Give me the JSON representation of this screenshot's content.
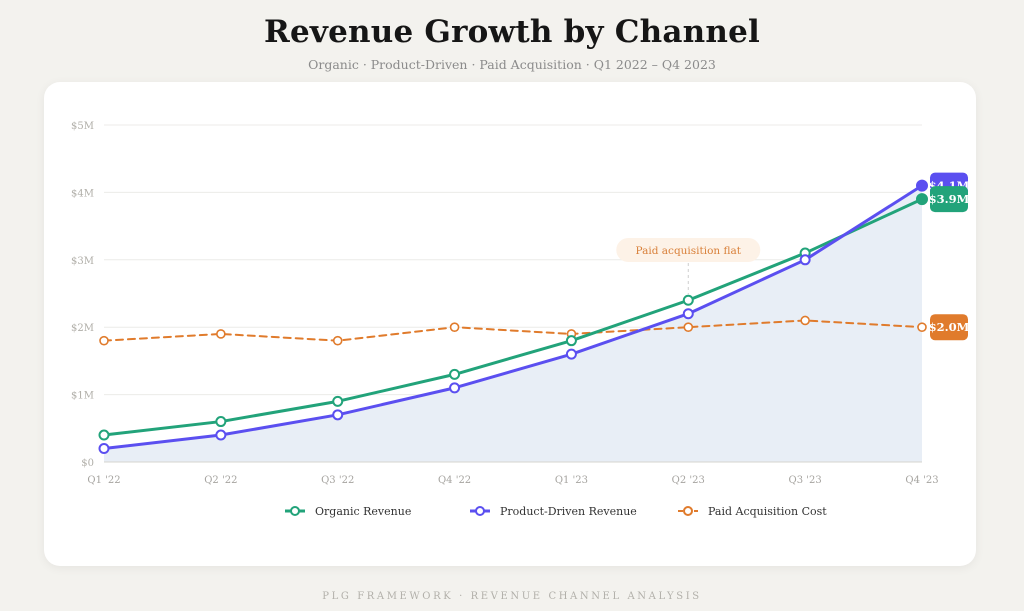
{
  "title": "Revenue Growth by Channel",
  "subtitle": "Organic · Product-Driven · Paid Acquisition · Q1 2022 – Q4 2023",
  "footer": "PLG FRAMEWORK · REVENUE CHANNEL ANALYSIS",
  "chart_data": {
    "type": "line",
    "categories": [
      "Q1 '22",
      "Q2 '22",
      "Q3 '22",
      "Q4 '22",
      "Q1 '23",
      "Q2 '23",
      "Q3 '23",
      "Q4 '23"
    ],
    "ylim": [
      0,
      5
    ],
    "y_ticks": [
      0,
      1,
      2,
      3,
      4,
      5
    ],
    "y_tick_labels": [
      "$0",
      "$1M",
      "$2M",
      "$3M",
      "$4M",
      "$5M"
    ],
    "grid": true,
    "legend_position": "bottom",
    "series": [
      {
        "name": "Organic Revenue",
        "values": [
          0.4,
          0.6,
          0.9,
          1.3,
          1.8,
          2.4,
          3.1,
          3.9
        ],
        "color": "#22a37a",
        "dashed": false,
        "end_label": "$3.9M"
      },
      {
        "name": "Product-Driven Revenue",
        "values": [
          0.2,
          0.4,
          0.7,
          1.1,
          1.6,
          2.2,
          3.0,
          4.1
        ],
        "color": "#5b4ff0",
        "dashed": false,
        "end_label": "$4.1M"
      },
      {
        "name": "Paid Acquisition Cost",
        "values": [
          1.8,
          1.9,
          1.8,
          2.0,
          1.9,
          2.0,
          2.1,
          2.0
        ],
        "color": "#e07b2c",
        "dashed": true,
        "end_label": "$2.0M"
      }
    ],
    "area_fill_color": "#e8eef6",
    "annotations": [
      {
        "text": "Paid acquisition flat",
        "category_index": 5
      }
    ]
  }
}
